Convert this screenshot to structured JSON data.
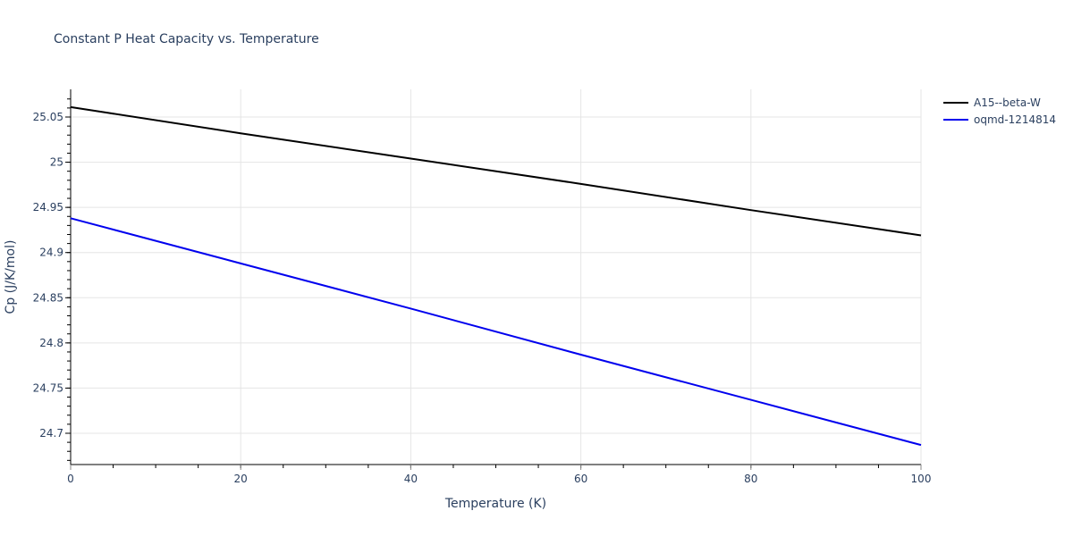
{
  "chart_data": {
    "type": "line",
    "title": "Constant P Heat Capacity vs. Temperature",
    "xlabel": "Temperature (K)",
    "ylabel": "Cp (J/K/mol)",
    "xlim": [
      0,
      100
    ],
    "ylim": [
      24.66,
      25.08
    ],
    "x_ticks": [
      0,
      20,
      40,
      60,
      80,
      100
    ],
    "y_ticks": [
      24.7,
      24.75,
      24.8,
      24.85,
      24.9,
      24.95,
      25,
      25.05
    ],
    "y_tick_labels": [
      "24.7",
      "24.75",
      "24.8",
      "24.85",
      "24.9",
      "24.95",
      "25",
      "25.05"
    ],
    "grid": true,
    "legend_position": "right-top",
    "x": [
      0,
      20,
      40,
      60,
      80,
      100
    ],
    "series": [
      {
        "name": "A15--beta-W",
        "color": "#000000",
        "values": [
          25.061,
          25.032,
          25.004,
          24.976,
          24.947,
          24.919
        ]
      },
      {
        "name": "oqmd-1214814",
        "color": "#0000ee",
        "values": [
          24.938,
          24.888,
          24.838,
          24.787,
          24.737,
          24.687
        ]
      }
    ]
  }
}
